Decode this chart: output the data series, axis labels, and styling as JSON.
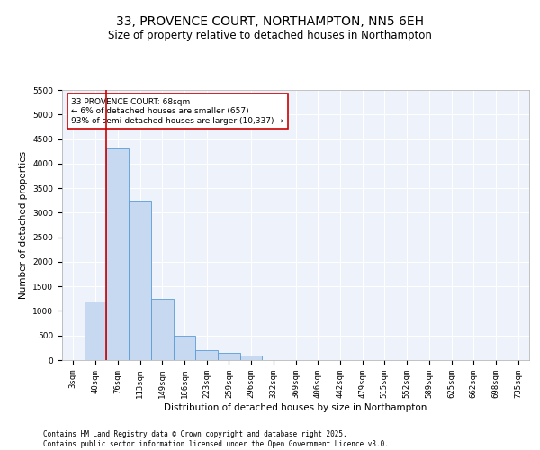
{
  "title": "33, PROVENCE COURT, NORTHAMPTON, NN5 6EH",
  "subtitle": "Size of property relative to detached houses in Northampton",
  "xlabel": "Distribution of detached houses by size in Northampton",
  "ylabel": "Number of detached properties",
  "categories": [
    "3sqm",
    "40sqm",
    "76sqm",
    "113sqm",
    "149sqm",
    "186sqm",
    "223sqm",
    "259sqm",
    "296sqm",
    "332sqm",
    "369sqm",
    "406sqm",
    "442sqm",
    "479sqm",
    "515sqm",
    "552sqm",
    "589sqm",
    "625sqm",
    "662sqm",
    "698sqm",
    "735sqm"
  ],
  "values": [
    0,
    1200,
    4300,
    3250,
    1250,
    500,
    200,
    150,
    100,
    0,
    0,
    0,
    0,
    0,
    0,
    0,
    0,
    0,
    0,
    0,
    0
  ],
  "bar_color": "#c6d9f0",
  "bar_edge_color": "#5a9bd4",
  "ylim": [
    0,
    5500
  ],
  "yticks": [
    0,
    500,
    1000,
    1500,
    2000,
    2500,
    3000,
    3500,
    4000,
    4500,
    5000,
    5500
  ],
  "property_line_x": 1.5,
  "property_line_color": "#cc0000",
  "annotation_text": "33 PROVENCE COURT: 68sqm\n← 6% of detached houses are smaller (657)\n93% of semi-detached houses are larger (10,337) →",
  "annotation_box_color": "#cc0000",
  "footer_line1": "Contains HM Land Registry data © Crown copyright and database right 2025.",
  "footer_line2": "Contains public sector information licensed under the Open Government Licence v3.0.",
  "background_color": "#eef2fa",
  "grid_color": "#ffffff",
  "title_fontsize": 10,
  "subtitle_fontsize": 8.5,
  "axis_label_fontsize": 7.5,
  "tick_fontsize": 6.5,
  "annotation_fontsize": 6.5,
  "footer_fontsize": 5.5
}
